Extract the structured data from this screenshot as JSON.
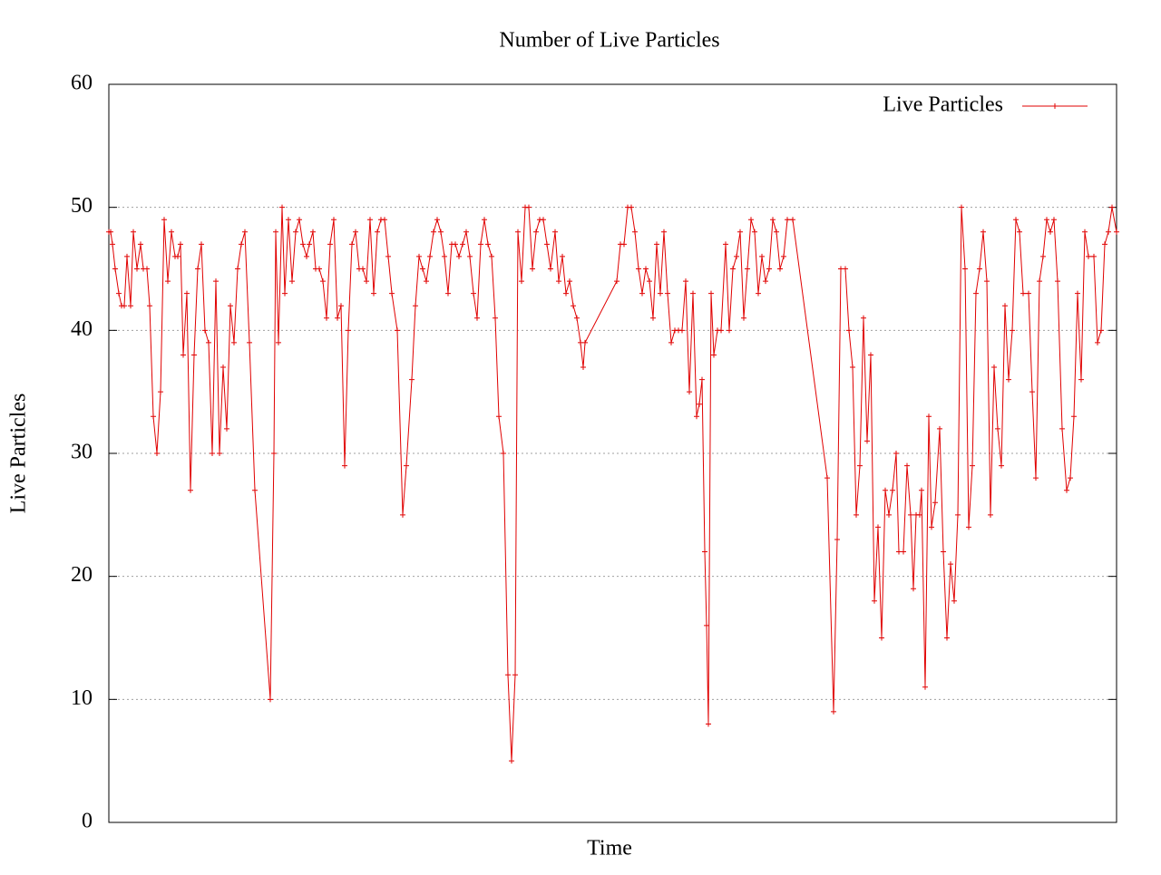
{
  "chart_data": {
    "type": "line",
    "title": "Number of Live Particles",
    "xlabel": "Time",
    "ylabel": "Live Particles",
    "xlim": [
      0,
      1111
    ],
    "ylim": [
      0,
      60
    ],
    "yticks": [
      0,
      10,
      20,
      30,
      40,
      50,
      60
    ],
    "grid": true,
    "legend": "upper right",
    "x": [
      0,
      2,
      4,
      7,
      11,
      14,
      17,
      20,
      24,
      27,
      31,
      35,
      38,
      42,
      45,
      49,
      53,
      57,
      61,
      65,
      69,
      73,
      76,
      79,
      82,
      86,
      90,
      94,
      98,
      102,
      106,
      110,
      114,
      118,
      122,
      126,
      130,
      134,
      138,
      142,
      146,
      150,
      155,
      161,
      178,
      182,
      184,
      187,
      191,
      194,
      198,
      202,
      206,
      210,
      214,
      218,
      221,
      225,
      228,
      232,
      236,
      240,
      244,
      248,
      252,
      256,
      260,
      264,
      268,
      272,
      276,
      280,
      284,
      288,
      292,
      296,
      300,
      304,
      308,
      312,
      318,
      324,
      328,
      334,
      338,
      342,
      346,
      350,
      354,
      358,
      362,
      366,
      370,
      374,
      378,
      382,
      386,
      390,
      394,
      398,
      402,
      406,
      410,
      414,
      418,
      422,
      426,
      430,
      435,
      440,
      444,
      448,
      451,
      455,
      459,
      463,
      467,
      471,
      475,
      479,
      483,
      487,
      492,
      496,
      500,
      504,
      508,
      512,
      516,
      520,
      523,
      525,
      560,
      564,
      568,
      572,
      576,
      580,
      584,
      588,
      592,
      596,
      600,
      604,
      608,
      612,
      616,
      620,
      624,
      628,
      632,
      636,
      640,
      644,
      648,
      651,
      654,
      657,
      659,
      661,
      664,
      667,
      671,
      675,
      680,
      684,
      688,
      692,
      696,
      700,
      704,
      708,
      712,
      716,
      720,
      724,
      728,
      732,
      736,
      740,
      744,
      748,
      754,
      792,
      799,
      803,
      807,
      812,
      816,
      820,
      824,
      828,
      832,
      836,
      840,
      844,
      848,
      852,
      856,
      860,
      864,
      868,
      871,
      876,
      880,
      884,
      887,
      890,
      894,
      896,
      900,
      904,
      907,
      911,
      916,
      920,
      924,
      928,
      932,
      936,
      940,
      944,
      948,
      952,
      956,
      960,
      964,
      968,
      972,
      976,
      980,
      984,
      988,
      992,
      996,
      1000,
      1004,
      1008,
      1014,
      1018,
      1022,
      1026,
      1030,
      1034,
      1038,
      1042,
      1046,
      1051,
      1056,
      1060,
      1064,
      1068,
      1072,
      1076,
      1080,
      1086,
      1090,
      1094,
      1098,
      1102,
      1106,
      1111
    ],
    "series": [
      {
        "name": "Live Particles",
        "color": "#e00000",
        "values": [
          48,
          48,
          47,
          45,
          43,
          42,
          42,
          46,
          42,
          48,
          45,
          47,
          45,
          45,
          42,
          33,
          30,
          35,
          49,
          44,
          48,
          46,
          46,
          47,
          38,
          43,
          27,
          38,
          45,
          47,
          40,
          39,
          30,
          44,
          30,
          37,
          32,
          42,
          39,
          45,
          47,
          48,
          39,
          27,
          10,
          30,
          48,
          39,
          50,
          43,
          49,
          44,
          48,
          49,
          47,
          46,
          47,
          48,
          45,
          45,
          44,
          41,
          47,
          49,
          41,
          42,
          29,
          40,
          47,
          48,
          45,
          45,
          44,
          49,
          43,
          48,
          49,
          49,
          46,
          43,
          40,
          25,
          29,
          36,
          42,
          46,
          45,
          44,
          46,
          48,
          49,
          48,
          46,
          43,
          47,
          47,
          46,
          47,
          48,
          46,
          43,
          41,
          47,
          49,
          47,
          46,
          41,
          33,
          30,
          12,
          5,
          12,
          48,
          44,
          50,
          50,
          45,
          48,
          49,
          49,
          47,
          45,
          48,
          44,
          46,
          43,
          44,
          42,
          41,
          39,
          37,
          39,
          44,
          47,
          47,
          50,
          50,
          48,
          45,
          43,
          45,
          44,
          41,
          47,
          43,
          48,
          43,
          39,
          40,
          40,
          40,
          44,
          35,
          43,
          33,
          34,
          36,
          22,
          16,
          8,
          43,
          38,
          40,
          40,
          47,
          40,
          45,
          46,
          48,
          41,
          45,
          49,
          48,
          43,
          46,
          44,
          45,
          49,
          48,
          45,
          46,
          49,
          49,
          28,
          9,
          23,
          45,
          45,
          40,
          37,
          25,
          29,
          41,
          31,
          38,
          18,
          24,
          15,
          27,
          25,
          27,
          30,
          22,
          22,
          29,
          25,
          19,
          25,
          25,
          27,
          11,
          33,
          24,
          26,
          32,
          22,
          15,
          21,
          18,
          25,
          50,
          45,
          24,
          29,
          43,
          45,
          48,
          44,
          25,
          37,
          32,
          29,
          42,
          36,
          40,
          49,
          48,
          43,
          43,
          35,
          28,
          44,
          46,
          49,
          48,
          49,
          44,
          32,
          27,
          28,
          33,
          43,
          36,
          48,
          46,
          46,
          39,
          40,
          47,
          48,
          50,
          48
        ]
      }
    ]
  }
}
